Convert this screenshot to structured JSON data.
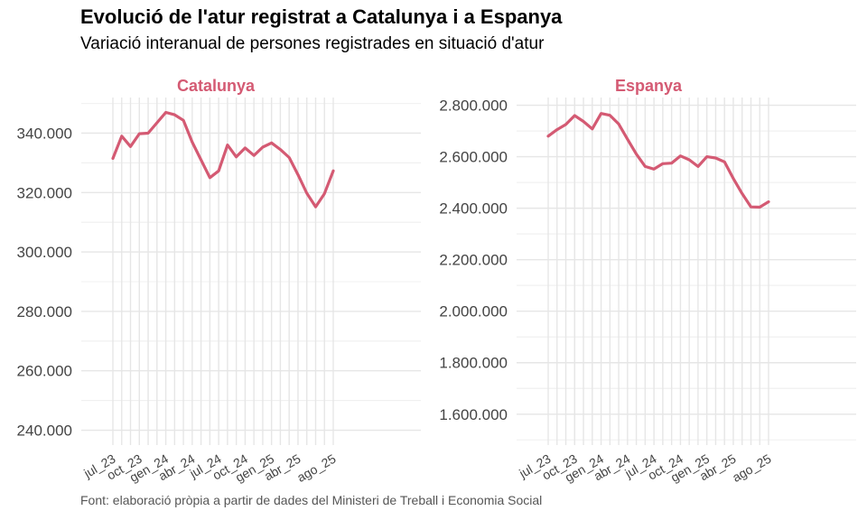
{
  "title": "Evolució de l'atur registrat a Catalunya i a Espanya",
  "subtitle": "Variació interanual de persones registrades en situació d'atur",
  "caption": "Font: elaboració pròpia a partir de dades del Ministeri de Treball i Economia Social",
  "colors": {
    "line": "#d45a73",
    "facet_title": "#d45a73",
    "grid_major": "#e6e6e6",
    "grid_minor": "#f0f0f0"
  },
  "chart_data": [
    {
      "type": "line",
      "title": "Catalunya",
      "xlabel": "",
      "ylabel": "",
      "grid": true,
      "x_tick_labels": [
        "jul_23",
        "oct_23",
        "gen_24",
        "abr_24",
        "jul_24",
        "oct_24",
        "gen_25",
        "abr_25",
        "ago_25"
      ],
      "y_tick_labels": [
        "240.000",
        "260.000",
        "280.000",
        "300.000",
        "320.000",
        "340.000"
      ],
      "y_ticks": [
        240000,
        260000,
        280000,
        300000,
        320000,
        340000
      ],
      "ylim": [
        235000,
        352000
      ],
      "x": [
        "jul_23",
        "ago_23",
        "set_23",
        "oct_23",
        "nov_23",
        "des_23",
        "gen_24",
        "feb_24",
        "mar_24",
        "abr_24",
        "mai_24",
        "jun_24",
        "jul_24",
        "ago_24",
        "set_24",
        "oct_24",
        "nov_24",
        "des_24",
        "gen_25",
        "feb_25",
        "mar_25",
        "abr_25",
        "mai_25",
        "jun_25",
        "jul_25",
        "ago_25"
      ],
      "values": [
        331500,
        339000,
        335500,
        339800,
        340000,
        343500,
        347000,
        346200,
        344300,
        337000,
        331000,
        325000,
        327300,
        336000,
        332000,
        335000,
        332500,
        335300,
        336700,
        334500,
        331800,
        326000,
        319800,
        315200,
        319600,
        327300
      ]
    },
    {
      "type": "line",
      "title": "Espanya",
      "xlabel": "",
      "ylabel": "",
      "grid": true,
      "x_tick_labels": [
        "jul_23",
        "oct_23",
        "gen_24",
        "abr_24",
        "jul_24",
        "oct_24",
        "gen_25",
        "abr_25",
        "ago_25"
      ],
      "y_tick_labels": [
        "1.600.000",
        "1.800.000",
        "2.000.000",
        "2.200.000",
        "2.400.000",
        "2.600.000",
        "2.800.000"
      ],
      "y_ticks": [
        1600000,
        1800000,
        2000000,
        2200000,
        2400000,
        2600000,
        2800000
      ],
      "ylim": [
        1480000,
        2830000
      ],
      "x": [
        "jul_23",
        "ago_23",
        "set_23",
        "oct_23",
        "nov_23",
        "des_23",
        "gen_24",
        "feb_24",
        "mar_24",
        "abr_24",
        "mai_24",
        "jun_24",
        "jul_24",
        "ago_24",
        "set_24",
        "oct_24",
        "nov_24",
        "des_24",
        "gen_25",
        "feb_25",
        "mar_25",
        "abr_25",
        "mai_25",
        "jun_25",
        "jul_25",
        "ago_25"
      ],
      "values": [
        2680000,
        2705000,
        2725000,
        2760000,
        2737000,
        2708000,
        2768000,
        2761000,
        2727000,
        2668000,
        2610000,
        2562000,
        2552000,
        2573000,
        2575000,
        2603000,
        2588000,
        2562000,
        2600000,
        2595000,
        2580000,
        2515000,
        2457000,
        2405000,
        2404000,
        2425000
      ]
    }
  ]
}
